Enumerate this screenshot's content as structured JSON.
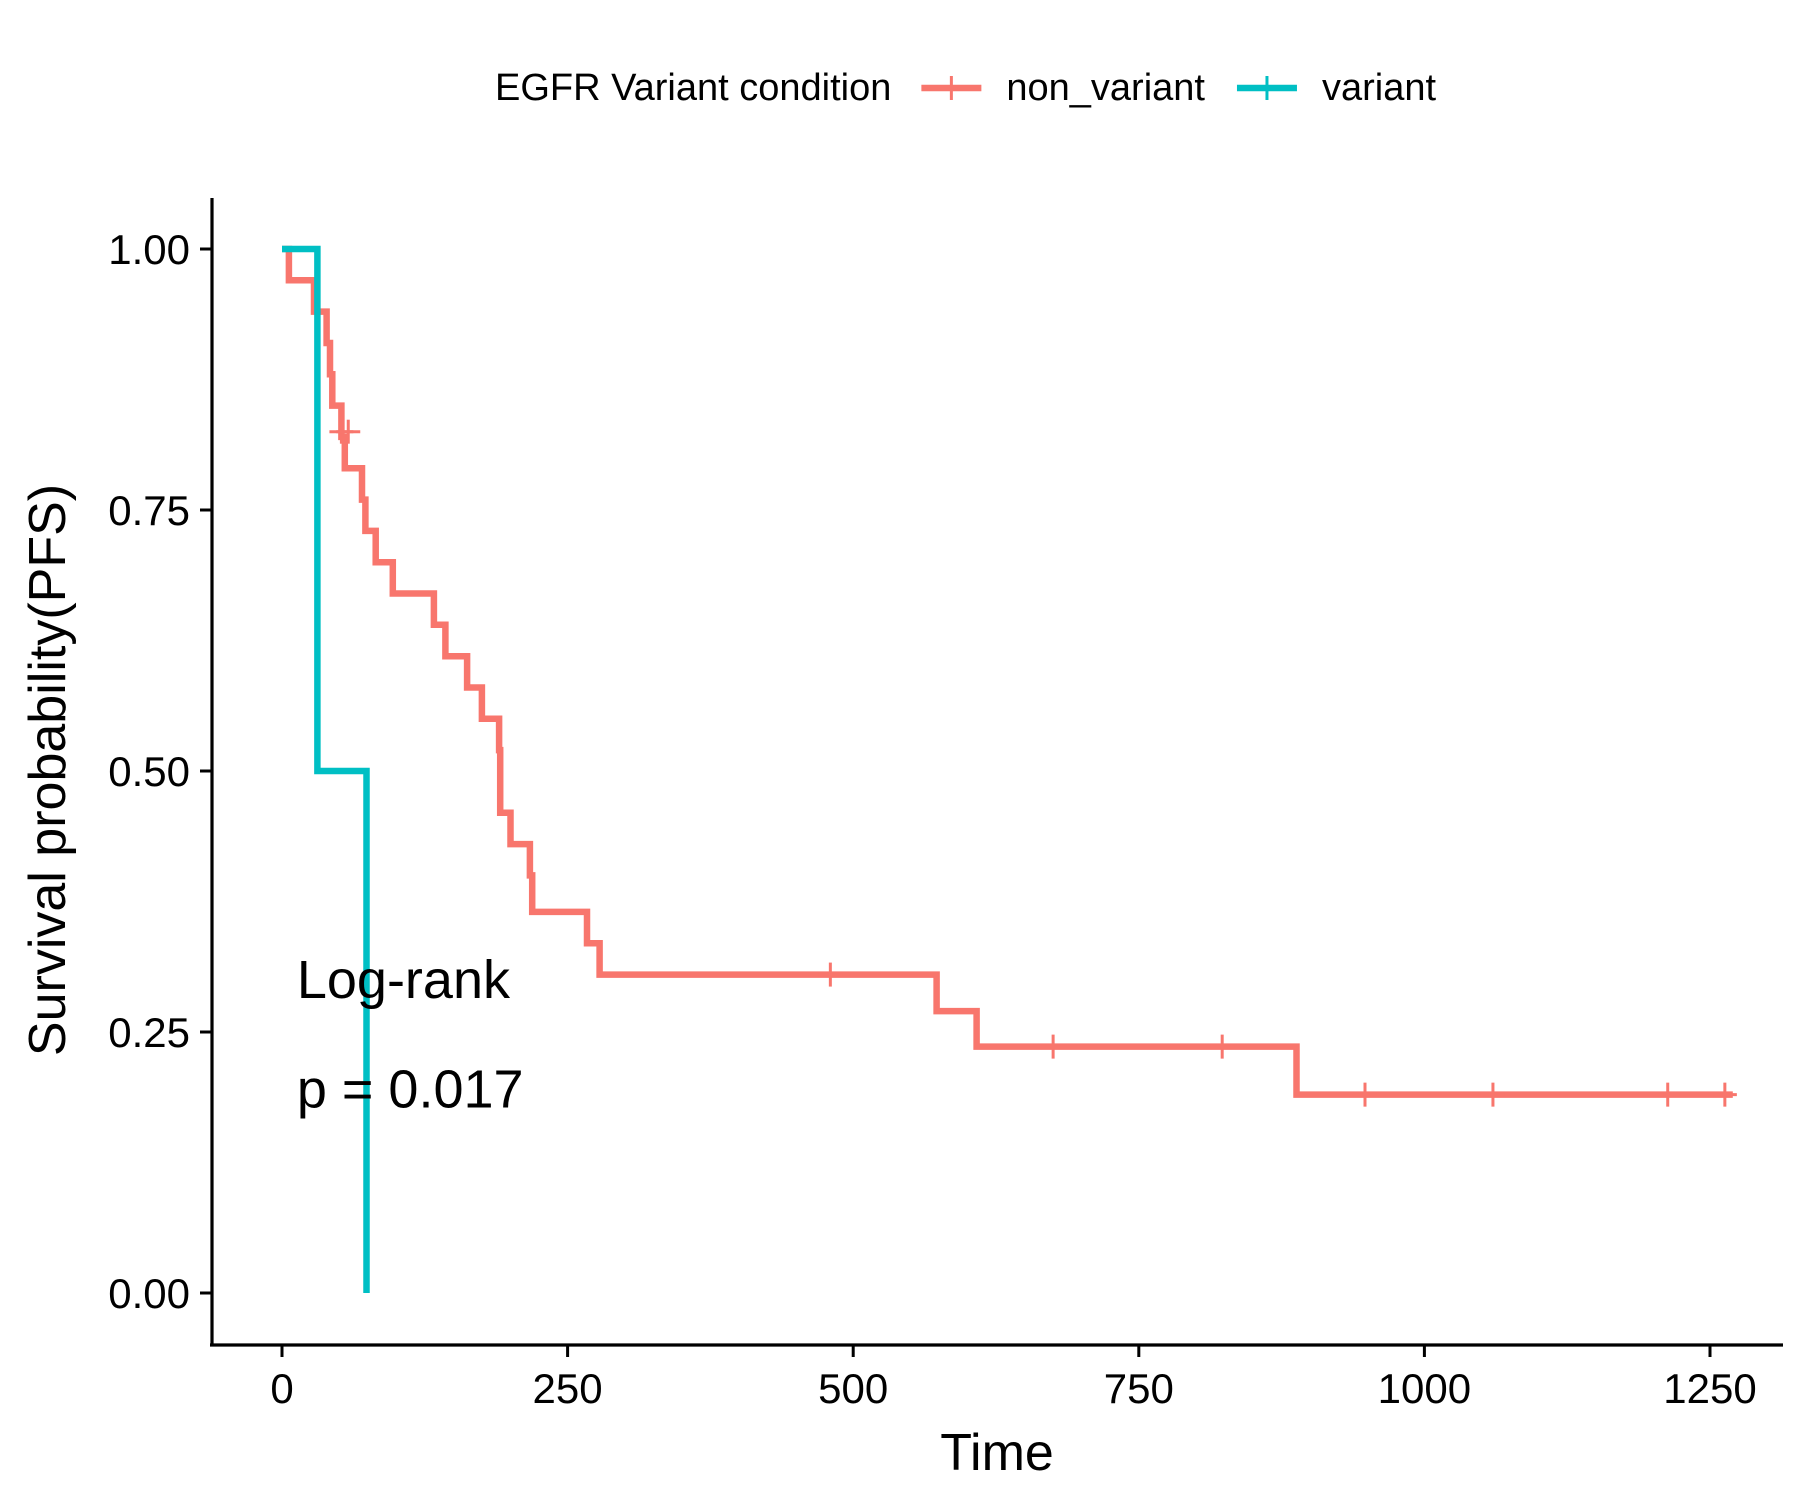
{
  "chart_data": {
    "type": "line",
    "step": true,
    "xlabel": "Time",
    "ylabel": "Survival probability(PFS)",
    "xlim": [
      -60,
      1300
    ],
    "ylim": [
      -0.05,
      1.05
    ],
    "x_ticks": [
      0,
      250,
      500,
      750,
      1000,
      1250
    ],
    "x_tick_labels": [
      "0",
      "250",
      "500",
      "750",
      "1000",
      "1250"
    ],
    "y_ticks": [
      0,
      0.25,
      0.5,
      0.75,
      1.0
    ],
    "y_tick_labels": [
      "0.00",
      "0.25",
      "0.50",
      "0.75",
      "1.00"
    ],
    "grid": false,
    "legend": {
      "title": "EGFR Variant condition",
      "position": "top"
    },
    "annotation": {
      "line1": "Log-rank",
      "line2": "p = 0.017",
      "x": 13,
      "y1": 0.3,
      "y2": 0.195
    },
    "series": [
      {
        "name": "non_variant",
        "color": "#F8766D",
        "points": [
          [
            0,
            1.0
          ],
          [
            6,
            1.0
          ],
          [
            6,
            0.97
          ],
          [
            28,
            0.97
          ],
          [
            28,
            0.94
          ],
          [
            39,
            0.94
          ],
          [
            39,
            0.91
          ],
          [
            42,
            0.91
          ],
          [
            42,
            0.88
          ],
          [
            44,
            0.88
          ],
          [
            44,
            0.85
          ],
          [
            52,
            0.85
          ],
          [
            52,
            0.82
          ],
          [
            55,
            0.82
          ],
          [
            55,
            0.79
          ],
          [
            70,
            0.79
          ],
          [
            70,
            0.76
          ],
          [
            73,
            0.76
          ],
          [
            73,
            0.73
          ],
          [
            82,
            0.73
          ],
          [
            82,
            0.7
          ],
          [
            97,
            0.7
          ],
          [
            97,
            0.67
          ],
          [
            133,
            0.67
          ],
          [
            133,
            0.64
          ],
          [
            143,
            0.64
          ],
          [
            143,
            0.61
          ],
          [
            162,
            0.61
          ],
          [
            162,
            0.58
          ],
          [
            175,
            0.58
          ],
          [
            175,
            0.55
          ],
          [
            190,
            0.55
          ],
          [
            190,
            0.52
          ],
          [
            191,
            0.52
          ],
          [
            191,
            0.46
          ],
          [
            200,
            0.46
          ],
          [
            200,
            0.43
          ],
          [
            217,
            0.43
          ],
          [
            217,
            0.4
          ],
          [
            219,
            0.4
          ],
          [
            219,
            0.365
          ],
          [
            267,
            0.365
          ],
          [
            267,
            0.335
          ],
          [
            278,
            0.335
          ],
          [
            278,
            0.305
          ],
          [
            573,
            0.305
          ],
          [
            573,
            0.27
          ],
          [
            608,
            0.27
          ],
          [
            608,
            0.236
          ],
          [
            888,
            0.236
          ],
          [
            888,
            0.19
          ],
          [
            1270,
            0.19
          ]
        ],
        "censored": [
          [
            52,
            0.825
          ],
          [
            58,
            0.825
          ],
          [
            480,
            0.305
          ],
          [
            675,
            0.236
          ],
          [
            823,
            0.236
          ],
          [
            948,
            0.19
          ],
          [
            1060,
            0.19
          ],
          [
            1213,
            0.19
          ],
          [
            1263,
            0.19
          ]
        ]
      },
      {
        "name": "variant",
        "color": "#00BFC4",
        "points": [
          [
            0,
            1.0
          ],
          [
            31,
            1.0
          ],
          [
            31,
            0.5
          ],
          [
            74,
            0.5
          ],
          [
            74,
            0.0
          ]
        ],
        "censored": []
      }
    ]
  }
}
